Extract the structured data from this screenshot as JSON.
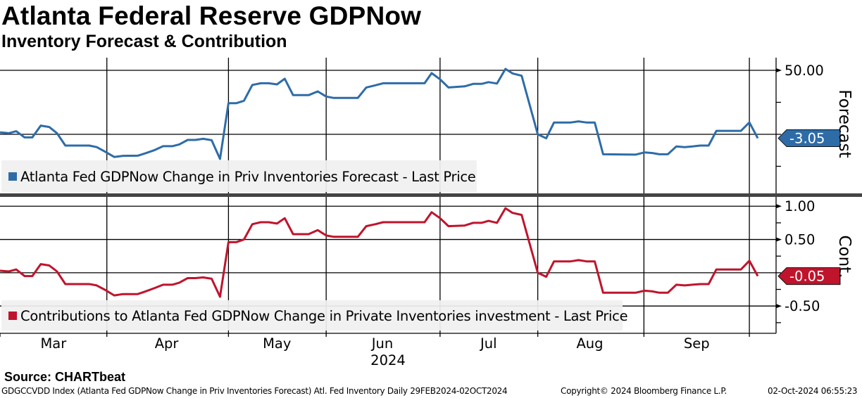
{
  "header": {
    "title": "Atlanta Federal Reserve GDPNow",
    "subtitle": "Inventory Forecast & Contribution"
  },
  "footer": {
    "source": "Source: CHARTbeat",
    "index_info": "GDGCCVDD Index (Atlanta Fed GDPNow Change in Priv Inventories Forecast) Atl. Fed Inventory  Daily 29FEB2024-02OCT2024",
    "copyright": "Copyright© 2024 Bloomberg Finance L.P.",
    "timestamp": "02-Oct-2024 06:55:23"
  },
  "chart_data": [
    {
      "type": "line",
      "title": "Forecast",
      "ylabel": "Forecast",
      "color": "#2e6ca8",
      "legend": "Atlanta Fed GDPNow Change in Priv Inventories Forecast - Last Price",
      "legend_position": "bottom-left",
      "last_value_label": "-3.05",
      "ylim": [
        -46.7,
        59.9
      ],
      "y_ticks": [
        {
          "v": 50,
          "label": "50.00"
        },
        {
          "v": 25,
          "label": ""
        },
        {
          "v": 0,
          "label": ""
        },
        {
          "v": -25,
          "label": ""
        }
      ],
      "y_gridlines": [
        50,
        0
      ],
      "x": [
        0,
        2.5,
        4.6,
        7,
        9.2,
        11.6,
        14,
        16.2,
        18.6,
        25.4,
        27.5,
        30,
        32.5,
        35,
        39.2,
        41.4,
        44,
        46.4,
        49,
        51,
        53.4,
        55.6,
        57.8,
        60.2,
        62.6,
        65,
        67.2,
        69.4,
        71.8,
        74.2,
        76.4,
        78.8,
        81,
        83.4,
        87.8,
        90.4,
        92.8,
        95,
        101.8,
        104.2,
        106.8,
        109,
        120.8,
        122.8,
        125.2,
        127.6,
        132.2,
        134.6,
        137,
        139,
        141.4,
        143.8,
        145.8,
        148.4,
        153,
        155.4,
        157.6,
        162.2,
        164.6,
        167,
        169.2,
        171.6,
        180.8,
        183.4,
        185.6,
        187.6,
        190,
        192.4,
        194.8,
        197,
        199.2,
        201.6,
        203.8,
        210.8,
        213.2,
        215.6
      ],
      "values": [
        1.5,
        0.9,
        2.4,
        -2.4,
        -2.4,
        6.8,
        5.7,
        0.9,
        -8.8,
        -8.8,
        -10,
        -13.7,
        -17.7,
        -16.8,
        -16.7,
        -14.8,
        -12.3,
        -9.3,
        -9.3,
        -7.9,
        -4.4,
        -4.4,
        -3.5,
        -4.6,
        -19.2,
        24.3,
        24.3,
        26.2,
        38.6,
        39.9,
        39.9,
        39,
        43.4,
        30.6,
        30.6,
        33.5,
        29.5,
        28.4,
        28.4,
        36.6,
        38.3,
        39.9,
        39.9,
        47.8,
        43,
        36.6,
        37.5,
        39.4,
        39.4,
        40.8,
        39.7,
        51.1,
        47.6,
        45.8,
        0,
        -3.1,
        9.2,
        9.2,
        10.1,
        9.2,
        9.2,
        -15.6,
        -15.9,
        -14.1,
        -14.6,
        -15.6,
        -15.6,
        -9.5,
        -10,
        -9.5,
        -8.8,
        -8.8,
        2.7,
        2.7,
        9.3,
        -3.05
      ]
    },
    {
      "type": "line",
      "title": "Contribution",
      "ylabel": "Cont.",
      "color": "#c0142c",
      "legend": "Contributions to Atlanta Fed GDPNow Change in Private Inventories investment - Last Price",
      "legend_position": "bottom-left",
      "last_value_label": "-0.05",
      "ylim": [
        -0.91,
        1.14
      ],
      "y_ticks": [
        {
          "v": 1,
          "label": "1.00"
        },
        {
          "v": 0.75,
          "label": ""
        },
        {
          "v": 0.5,
          "label": "0.50"
        },
        {
          "v": 0.25,
          "label": ""
        },
        {
          "v": 0,
          "label": ""
        },
        {
          "v": -0.25,
          "label": ""
        },
        {
          "v": -0.5,
          "label": "-0.50"
        },
        {
          "v": -0.75,
          "label": ""
        }
      ],
      "y_gridlines": [
        1,
        0.5,
        0,
        -0.5
      ],
      "x": [
        0,
        2.5,
        4.6,
        7,
        9.2,
        11.6,
        14,
        16.2,
        18.6,
        25.4,
        27.5,
        30,
        32.5,
        35,
        39.2,
        41.4,
        44,
        46.4,
        49,
        51,
        53.4,
        55.6,
        57.8,
        60.2,
        62.6,
        65,
        67.2,
        69.4,
        71.8,
        74.2,
        76.4,
        78.8,
        81,
        83.4,
        87.8,
        90.4,
        92.8,
        95,
        101.8,
        104.2,
        106.8,
        109,
        120.8,
        122.8,
        125.2,
        127.6,
        132.2,
        134.6,
        137,
        139,
        141.4,
        143.8,
        145.8,
        148.4,
        153,
        155.4,
        157.6,
        162.2,
        164.6,
        167,
        169.2,
        171.6,
        180.8,
        183.4,
        185.6,
        187.6,
        190,
        192.4,
        194.8,
        197,
        199.2,
        201.6,
        203.8,
        210.8,
        213.2,
        215.6
      ],
      "values": [
        0.03,
        0.02,
        0.05,
        -0.05,
        -0.05,
        0.13,
        0.11,
        0.02,
        -0.17,
        -0.17,
        -0.19,
        -0.26,
        -0.34,
        -0.32,
        -0.32,
        -0.28,
        -0.23,
        -0.18,
        -0.18,
        -0.15,
        -0.08,
        -0.08,
        -0.07,
        -0.09,
        -0.36,
        0.46,
        0.46,
        0.5,
        0.73,
        0.76,
        0.76,
        0.74,
        0.82,
        0.58,
        0.58,
        0.64,
        0.56,
        0.54,
        0.54,
        0.7,
        0.73,
        0.76,
        0.76,
        0.91,
        0.82,
        0.7,
        0.71,
        0.75,
        0.75,
        0.78,
        0.75,
        0.97,
        0.9,
        0.87,
        0,
        -0.06,
        0.17,
        0.17,
        0.19,
        0.17,
        0.17,
        -0.3,
        -0.3,
        -0.27,
        -0.28,
        -0.3,
        -0.3,
        -0.18,
        -0.19,
        -0.18,
        -0.17,
        -0.17,
        0.05,
        0.05,
        0.18,
        -0.05
      ]
    }
  ],
  "x_axis": {
    "unit": "days since 29-Feb-2024",
    "xlim": [
      0,
      220.8
    ],
    "gridlines": [
      30.4,
      65,
      92.8,
      125.2,
      153,
      183.2,
      213.2
    ],
    "month_labels": [
      {
        "v": 15.2,
        "label": "Mar"
      },
      {
        "v": 47.4,
        "label": "Apr"
      },
      {
        "v": 78.8,
        "label": "May"
      },
      {
        "v": 108.8,
        "label": "Jun"
      },
      {
        "v": 139,
        "label": "Jul"
      },
      {
        "v": 167.8,
        "label": "Aug"
      },
      {
        "v": 198.2,
        "label": "Sep"
      }
    ],
    "year_label": "2024",
    "year_label_at": 110.4
  }
}
